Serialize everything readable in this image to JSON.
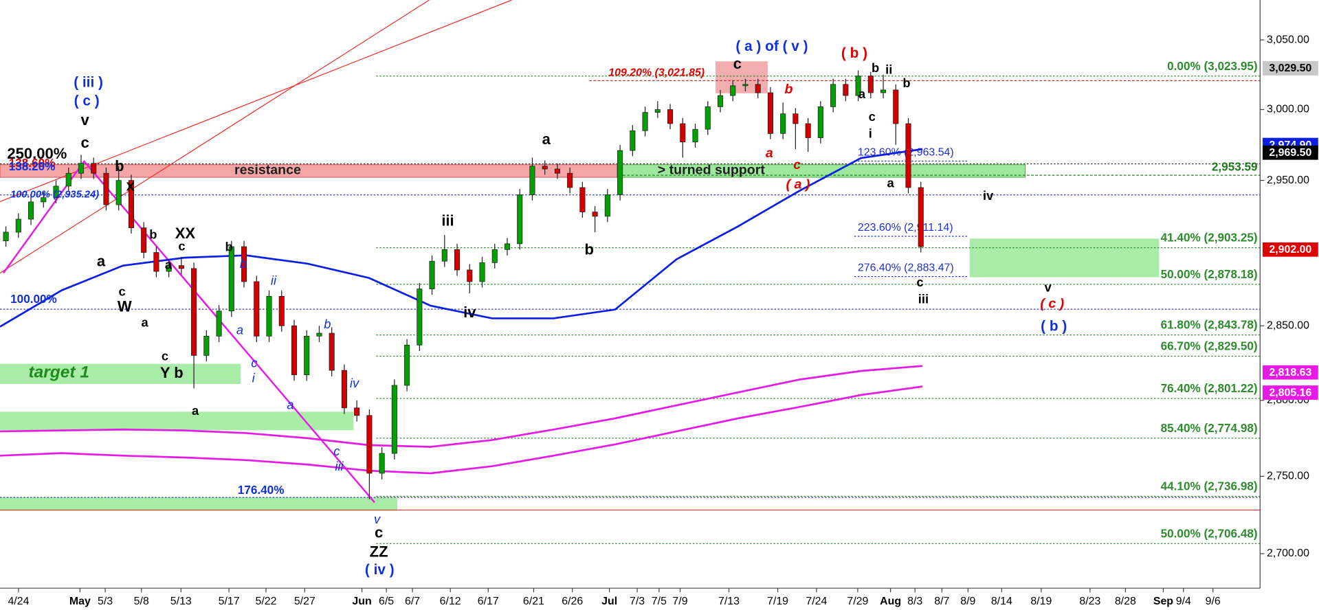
{
  "chart_data": {
    "type": "candlestick",
    "log_scale": true,
    "ylim": [
      2678,
      3079
    ],
    "yticks": [
      {
        "value": 2700,
        "label": "2,700.00"
      },
      {
        "value": 2750,
        "label": "2,750.00"
      },
      {
        "value": 2800,
        "label": "2,800.00"
      },
      {
        "value": 2850,
        "label": "2,850.00"
      },
      {
        "value": 2950,
        "label": "2,950.00"
      },
      {
        "value": 3000,
        "label": "3,000.00"
      },
      {
        "value": 3050,
        "label": "3,050.00"
      }
    ],
    "up_color": "#00a000",
    "down_color": "#d00000",
    "open": [
      2908,
      2914,
      2923,
      2935,
      2938,
      2946,
      2955,
      2962,
      2955,
      2933,
      2950,
      2917,
      2900,
      2887,
      2891,
      2889,
      2830,
      2843,
      2860,
      2904,
      2880,
      2843,
      2870,
      2850,
      2817,
      2843,
      2845,
      2820,
      2795,
      2790,
      2752,
      2765,
      2810,
      2837,
      2875,
      2894,
      2902,
      2888,
      2880,
      2893,
      2902,
      2906,
      2940,
      2960,
      2958,
      2955,
      2945,
      2928,
      2925,
      2940,
      2971,
      2985,
      2998,
      3000,
      2990,
      2977,
      2986,
      3002,
      3010,
      3017,
      3018,
      3012,
      2983,
      2997,
      2990,
      2980,
      3002,
      3018,
      3010,
      3024,
      3012,
      3014,
      2990,
      2945
    ],
    "high": [
      2918,
      2927,
      2939,
      2942,
      2950,
      2959,
      2968,
      2966,
      2959,
      2960,
      2954,
      2921,
      2904,
      2895,
      2897,
      2893,
      2847,
      2864,
      2908,
      2908,
      2884,
      2874,
      2874,
      2854,
      2847,
      2850,
      2849,
      2824,
      2800,
      2794,
      2769,
      2814,
      2841,
      2879,
      2898,
      2912,
      2906,
      2892,
      2897,
      2906,
      2910,
      2944,
      2966,
      2964,
      2962,
      2959,
      2949,
      2932,
      2944,
      2975,
      2989,
      3002,
      3006,
      3004,
      2994,
      2990,
      3006,
      3014,
      3021,
      3022,
      3022,
      3016,
      3005,
      3001,
      2994,
      3006,
      3022,
      3022,
      3028,
      3027,
      3025,
      3018,
      2994,
      2949
    ],
    "low": [
      2904,
      2910,
      2919,
      2931,
      2934,
      2942,
      2951,
      2951,
      2929,
      2929,
      2913,
      2896,
      2883,
      2883,
      2885,
      2808,
      2826,
      2839,
      2856,
      2876,
      2839,
      2839,
      2846,
      2813,
      2813,
      2839,
      2816,
      2791,
      2786,
      2735,
      2748,
      2761,
      2806,
      2833,
      2871,
      2890,
      2884,
      2872,
      2876,
      2889,
      2898,
      2902,
      2936,
      2954,
      2951,
      2941,
      2924,
      2914,
      2921,
      2936,
      2967,
      2981,
      2994,
      2986,
      2966,
      2973,
      2982,
      2998,
      3006,
      3013,
      3008,
      2979,
      2979,
      2972,
      2970,
      2976,
      2998,
      3006,
      3006,
      3008,
      3008,
      2975,
      2941,
      2900
    ],
    "close": [
      2914,
      2923,
      2935,
      2938,
      2946,
      2955,
      2962,
      2955,
      2933,
      2950,
      2917,
      2900,
      2887,
      2891,
      2889,
      2830,
      2843,
      2860,
      2904,
      2880,
      2843,
      2870,
      2850,
      2817,
      2843,
      2845,
      2820,
      2795,
      2790,
      2752,
      2765,
      2810,
      2837,
      2875,
      2894,
      2902,
      2888,
      2880,
      2893,
      2902,
      2906,
      2940,
      2960,
      2958,
      2955,
      2945,
      2928,
      2925,
      2940,
      2971,
      2985,
      2998,
      3000,
      2990,
      2977,
      2986,
      3002,
      3010,
      3017,
      3018,
      3012,
      2983,
      2997,
      2990,
      2980,
      3002,
      3018,
      3010,
      3024,
      3012,
      3014,
      2990,
      2945,
      2904
    ],
    "moving_averages": [
      {
        "color": "#0a1ee6",
        "values": [
          2849.4,
          2874,
          2891,
          2896.4,
          2898,
          2892.3,
          2882.5,
          2863.6,
          2855,
          2855,
          2861,
          2895.3,
          2918,
          2942.8,
          2965.7,
          2972
        ]
      },
      {
        "color": "#e619e6",
        "values": [
          2779.5,
          2780.1,
          2780.7,
          2780.1,
          2778.4,
          2775,
          2770.4,
          2769.3,
          2773.8,
          2780.7,
          2788.1,
          2796.7,
          2805.3,
          2813.9,
          2819.6,
          2823
        ]
      },
      {
        "color": "#e619e6",
        "values": [
          2763.5,
          2765.2,
          2763.5,
          2762.3,
          2760.6,
          2757.7,
          2753.7,
          2752,
          2756.6,
          2763.5,
          2770.9,
          2779.5,
          2788.1,
          2795.6,
          2803.6,
          2809.3
        ]
      }
    ],
    "x_labels": [
      "4/24",
      "May",
      "5/3",
      "5/8",
      "5/13",
      "5/17",
      "5/22",
      "5/27",
      "Jun",
      "6/5",
      "6/7",
      "6/12",
      "6/17",
      "6/21",
      "6/26",
      "Jul",
      "7/3",
      "7/5",
      "7/9",
      "7/13",
      "7/19",
      "7/24",
      "7/29",
      "Aug",
      "8/3",
      "8/7",
      "8/9",
      "8/14",
      "8/19",
      "8/23",
      "8/28",
      "Sep",
      "9/4",
      "9/6"
    ],
    "price_labels": [
      {
        "value": 3029.5,
        "label": "3,029.50",
        "color": "#c8c8c8"
      },
      {
        "value": 2974.9,
        "label": "2,974.90",
        "color": "#0a1ee6"
      },
      {
        "value": 2969.5,
        "label": "2,969.50",
        "color": "#000000"
      },
      {
        "value": 2902.0,
        "label": "2,902.00",
        "color": "#e00000"
      },
      {
        "value": 2818.63,
        "label": "2,818.63",
        "color": "#e619e6"
      },
      {
        "value": 2805.16,
        "label": "2,805.16",
        "color": "#e619e6"
      }
    ],
    "fib_levels": [
      {
        "value": 3023.95,
        "label": "0.00% (3,023.95)"
      },
      {
        "value": 2903.25,
        "label": "41.40% (2,903.25)"
      },
      {
        "value": 2878.18,
        "label": "50.00% (2,878.18)"
      },
      {
        "value": 2843.78,
        "label": "61.80% (2,843.78)"
      },
      {
        "value": 2829.5,
        "label": "66.70% (2,829.50)"
      },
      {
        "value": 2801.22,
        "label": "76.40% (2,801.22)"
      },
      {
        "value": 2774.98,
        "label": "85.40% (2,774.98)"
      },
      {
        "value": 2736.98,
        "label": "44.10% (2,736.98)"
      },
      {
        "value": 2706.48,
        "label": "50.00% (2,706.48)"
      }
    ],
    "ext_levels": [
      {
        "value": 2963.54,
        "label": "123.60% (2,963.54)"
      },
      {
        "value": 2911.14,
        "label": "223.60% (2,911.14)"
      },
      {
        "value": 2883.47,
        "label": "276.40% (2,883.47)"
      }
    ],
    "support_level": {
      "value": 2953.59,
      "label": "2,953.59"
    },
    "annotations": [
      "( iii )",
      "( c )",
      "v",
      "c",
      "250.00%",
      "b",
      "x",
      "a",
      "c",
      "W",
      "b",
      "XX",
      "c",
      "a",
      "b",
      "b",
      "ii",
      "a",
      "c",
      "Y b",
      "a",
      "a",
      "c",
      "i",
      "b",
      "a",
      "iv",
      "c",
      "iii",
      "v",
      "c",
      "ZZ",
      "( iv )",
      "iii",
      "iv",
      "a",
      "b",
      "( a ) of ( v )",
      "c",
      "( b )",
      "b",
      "a",
      "c",
      "( a )",
      "a",
      "b",
      "ii",
      "b",
      "c",
      "i",
      "a",
      "iv",
      "c",
      "iii",
      "v",
      "( c )",
      "( b )",
      "resistance",
      "> turned support",
      "target 1",
      "138.60%",
      "138.20%",
      "100.00% (2,935.24)",
      "100.00%",
      "176.40%",
      "109.20% (3,021.85)"
    ]
  }
}
